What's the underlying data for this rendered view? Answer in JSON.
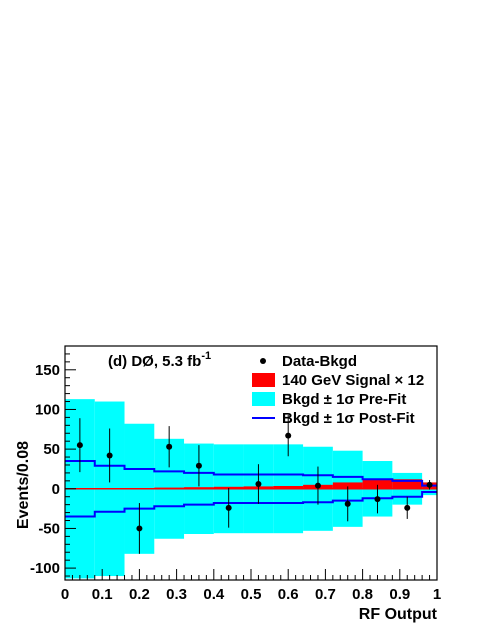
{
  "chart_data": {
    "type": "histogram",
    "annotation": {
      "main": "(d) DØ, 5.3 fb",
      "sup": "-1"
    },
    "xlabel": "RF Output",
    "ylabel": "Events/0.08",
    "xlim": [
      0,
      1
    ],
    "ylim": [
      -115,
      180
    ],
    "xticks": [
      "0",
      "0.1",
      "0.2",
      "0.3",
      "0.4",
      "0.5",
      "0.6",
      "0.7",
      "0.8",
      "0.9",
      "1"
    ],
    "xtick_values": [
      0,
      0.1,
      0.2,
      0.3,
      0.4,
      0.5,
      0.6,
      0.7,
      0.8,
      0.9,
      1
    ],
    "yticks": [
      "-100",
      "-50",
      "0",
      "50",
      "100",
      "150"
    ],
    "ytick_values": [
      -100,
      -50,
      0,
      50,
      100,
      150
    ],
    "bin_edges": [
      0,
      0.08,
      0.16,
      0.24,
      0.32,
      0.4,
      0.48,
      0.56,
      0.64,
      0.72,
      0.8,
      0.88,
      0.96,
      1.0
    ],
    "prefit_band": [
      113,
      110,
      82,
      63,
      57,
      56,
      56,
      56,
      53,
      48,
      35,
      20,
      8
    ],
    "postfit_band": [
      35,
      29,
      25,
      22,
      20,
      18,
      18,
      18,
      17,
      15,
      12,
      10,
      4
    ],
    "signal_x12": [
      0.5,
      0.8,
      1,
      1.5,
      2,
      2.5,
      3,
      3.5,
      5,
      8,
      11,
      12,
      8
    ],
    "data_points": [
      {
        "x": 0.04,
        "y": 55,
        "err": 34
      },
      {
        "x": 0.12,
        "y": 42,
        "err": 34
      },
      {
        "x": 0.2,
        "y": -50,
        "err": 32
      },
      {
        "x": 0.28,
        "y": 53,
        "err": 26
      },
      {
        "x": 0.36,
        "y": 29,
        "err": 26
      },
      {
        "x": 0.44,
        "y": -24,
        "err": 25
      },
      {
        "x": 0.52,
        "y": 6,
        "err": 25
      },
      {
        "x": 0.6,
        "y": 67,
        "err": 26
      },
      {
        "x": 0.68,
        "y": 4,
        "err": 24
      },
      {
        "x": 0.76,
        "y": -19,
        "err": 22
      },
      {
        "x": 0.84,
        "y": -13,
        "err": 18
      },
      {
        "x": 0.92,
        "y": -24,
        "err": 14
      },
      {
        "x": 0.98,
        "y": 5,
        "err": 6
      }
    ],
    "legend": {
      "placement": "top-right",
      "entries": [
        {
          "label": "Data-Bkgd",
          "style": "marker"
        },
        {
          "label": "140 GeV Signal × 12",
          "style": "fill",
          "color": "#ff0000"
        },
        {
          "label": "Bkgd ± 1σ Pre-Fit",
          "style": "fill",
          "color": "#00ffff"
        },
        {
          "label": "Bkgd ± 1σ Post-Fit",
          "style": "line",
          "color": "#0000ff"
        }
      ]
    },
    "colors": {
      "prefit": "#00ffff",
      "postfit": "#0000ff",
      "signal": "#ff0000",
      "data": "#000000",
      "zero_line": "#ff0000"
    }
  }
}
